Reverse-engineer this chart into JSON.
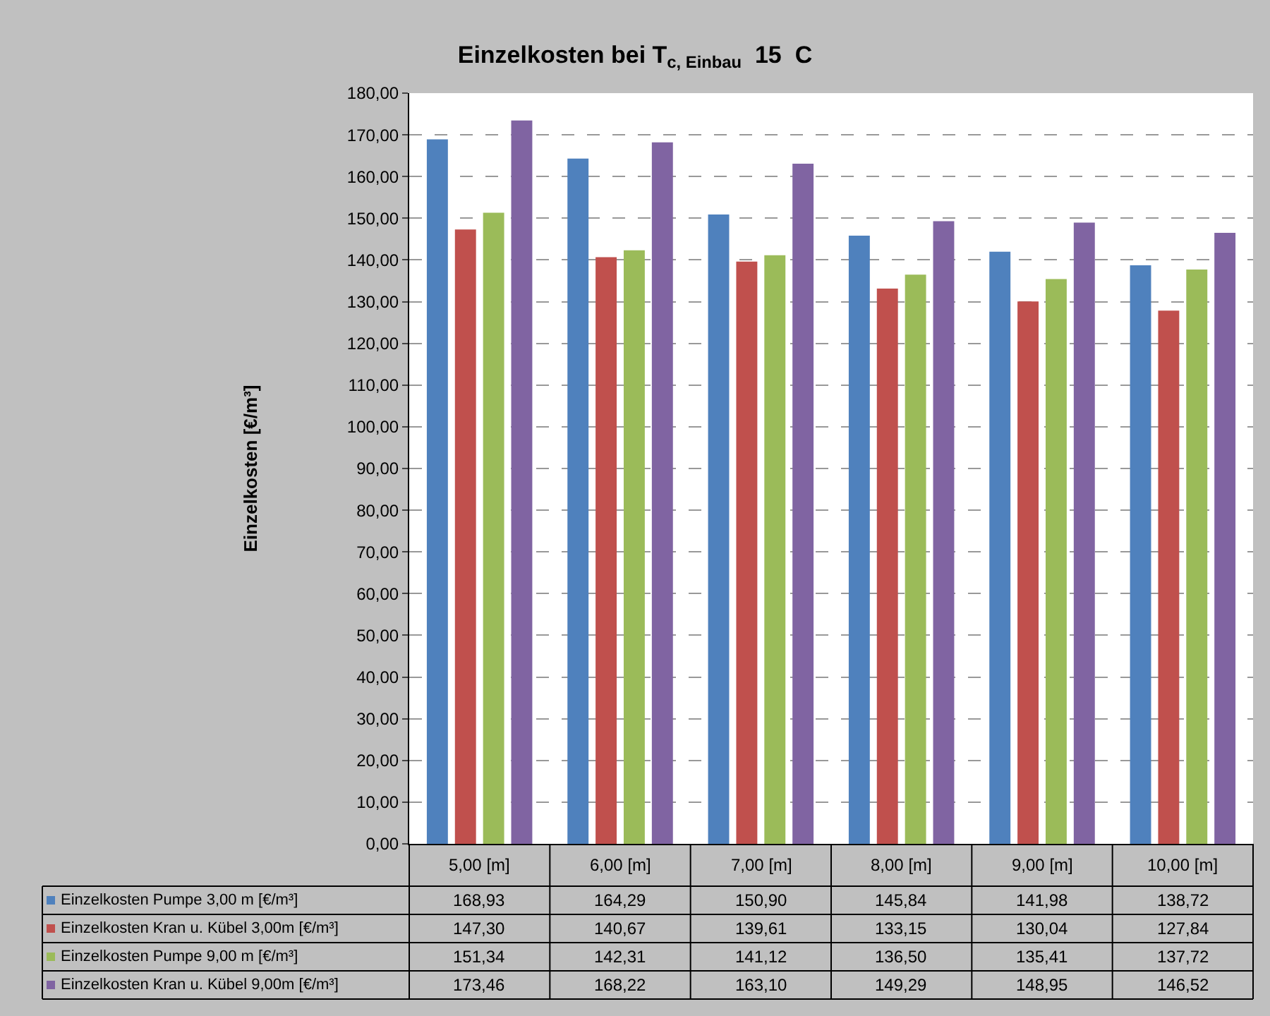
{
  "chart_data": {
    "type": "bar",
    "title": "Einzelkosten bei T$_{c, Einbau}$  15  C",
    "ylabel": "Einzelkosten [€/m³]",
    "categories": [
      "5,00 [m]",
      "6,00 [m]",
      "7,00 [m]",
      "8,00 [m]",
      "9,00 [m]",
      "10,00 [m]"
    ],
    "series": [
      {
        "name": "Einzelkosten Pumpe 3,00 m [€/m³]",
        "color": "#4f81bd",
        "values": [
          168.93,
          164.29,
          150.9,
          145.84,
          141.98,
          138.72
        ],
        "value_labels": [
          "168,93",
          "164,29",
          "150,90",
          "145,84",
          "141,98",
          "138,72"
        ]
      },
      {
        "name": "Einzelkosten Kran u. Kübel 3,00m [€/m³]",
        "color": "#c0504d",
        "values": [
          147.3,
          140.67,
          139.61,
          133.15,
          130.04,
          127.84
        ],
        "value_labels": [
          "147,30",
          "140,67",
          "139,61",
          "133,15",
          "130,04",
          "127,84"
        ]
      },
      {
        "name": "Einzelkosten Pumpe 9,00 m [€/m³]",
        "color": "#9bbb59",
        "values": [
          151.34,
          142.31,
          141.12,
          136.5,
          135.41,
          137.72
        ],
        "value_labels": [
          "151,34",
          "142,31",
          "141,12",
          "136,50",
          "135,41",
          "137,72"
        ]
      },
      {
        "name": "Einzelkosten Kran u. Kübel 9,00m [€/m³]",
        "color": "#8064a2",
        "values": [
          173.46,
          168.22,
          163.1,
          149.29,
          148.95,
          146.52
        ],
        "value_labels": [
          "173,46",
          "168,22",
          "163,10",
          "149,29",
          "148,95",
          "146,52"
        ]
      }
    ],
    "ylim": [
      0,
      180
    ],
    "yticks": [
      {
        "value": 0,
        "label": "0,00"
      },
      {
        "value": 10,
        "label": "10,00"
      },
      {
        "value": 20,
        "label": "20,00"
      },
      {
        "value": 30,
        "label": "30,00"
      },
      {
        "value": 40,
        "label": "40,00"
      },
      {
        "value": 50,
        "label": "50,00"
      },
      {
        "value": 60,
        "label": "60,00"
      },
      {
        "value": 70,
        "label": "70,00"
      },
      {
        "value": 80,
        "label": "80,00"
      },
      {
        "value": 90,
        "label": "90,00"
      },
      {
        "value": 100,
        "label": "100,00"
      },
      {
        "value": 110,
        "label": "110,00"
      },
      {
        "value": 120,
        "label": "120,00"
      },
      {
        "value": 130,
        "label": "130,00"
      },
      {
        "value": 140,
        "label": "140,00"
      },
      {
        "value": 150,
        "label": "150,00"
      },
      {
        "value": 160,
        "label": "160,00"
      },
      {
        "value": 170,
        "label": "170,00"
      },
      {
        "value": 180,
        "label": "180,00"
      }
    ],
    "grid": "y",
    "legend": "bottom left"
  }
}
